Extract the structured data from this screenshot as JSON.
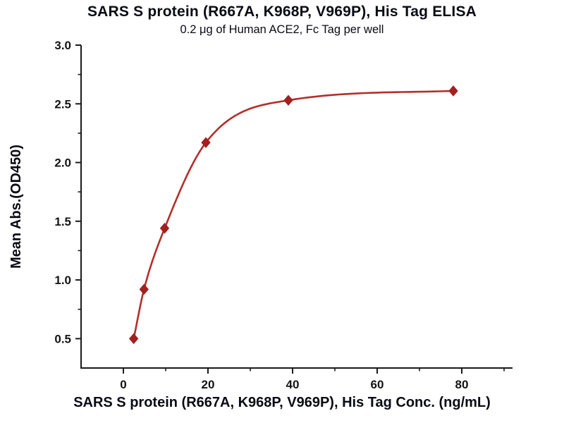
{
  "chart_data": {
    "type": "scatter",
    "title": "SARS S protein (R667A, K968P, V969P), His Tag ELISA",
    "subtitle": "0.2 μg of Human ACE2, Fc Tag per well",
    "xlabel": "SARS S protein (R667A, K968P, V969P), His Tag Conc. (ng/mL)",
    "ylabel": "Mean Abs.(OD450)",
    "x": [
      2.44,
      4.88,
      9.75,
      19.5,
      39,
      78
    ],
    "y": [
      0.5,
      0.92,
      1.44,
      2.17,
      2.53,
      2.61
    ],
    "xlim": [
      -10,
      92
    ],
    "ylim": [
      0.25,
      3.0
    ],
    "xticks": [
      0,
      20,
      40,
      60,
      80
    ],
    "xminorticks": [
      10,
      30,
      50,
      70,
      90
    ],
    "yticks": [
      0.5,
      1.0,
      1.5,
      2.0,
      2.5,
      3.0
    ],
    "yminorticks": [
      0.75,
      1.25,
      1.75,
      2.25,
      2.75
    ],
    "marker": "diamond",
    "curve": "smooth-fit-through-points",
    "grid": false,
    "legend": "none",
    "line_color": "#b22f2b",
    "marker_color": "#a3201e",
    "axis_color": "#1a1a1a",
    "text_color": "#141414"
  }
}
